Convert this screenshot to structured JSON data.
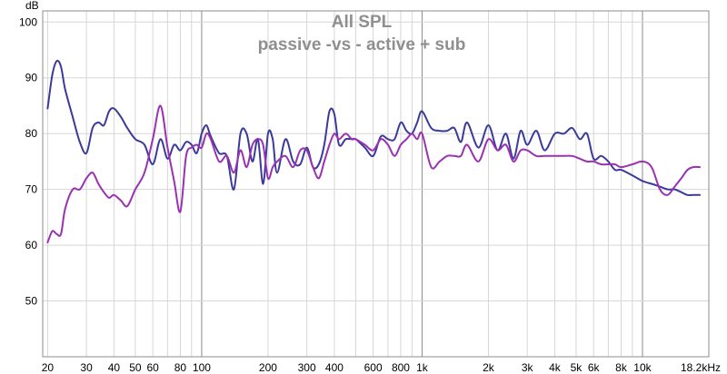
{
  "chart_data": {
    "type": "line",
    "title": "All SPL",
    "subtitle": "passive -vs - active + sub",
    "ylabel": "dB",
    "xlabel": "",
    "x_scale": "log",
    "xlim": [
      19,
      20000
    ],
    "ylim": [
      40,
      102
    ],
    "grid": true,
    "colors": {
      "blue": "#3a3a9a",
      "purple": "#9a30b2",
      "grid_major": "#8c8c8c",
      "grid_minor": "#d6d6d6"
    },
    "y_ticks": [
      {
        "v": 100,
        "label": "100"
      },
      {
        "v": 90,
        "label": "90"
      },
      {
        "v": 80,
        "label": "80"
      },
      {
        "v": 70,
        "label": "70"
      },
      {
        "v": 60,
        "label": "60"
      },
      {
        "v": 50,
        "label": "50"
      }
    ],
    "x_ticks": [
      {
        "v": 20,
        "label": "20"
      },
      {
        "v": 30,
        "label": "30"
      },
      {
        "v": 40,
        "label": "40"
      },
      {
        "v": 50,
        "label": "50"
      },
      {
        "v": 60,
        "label": "60"
      },
      {
        "v": 80,
        "label": "80"
      },
      {
        "v": 100,
        "label": "100"
      },
      {
        "v": 200,
        "label": "200"
      },
      {
        "v": 300,
        "label": "300"
      },
      {
        "v": 400,
        "label": "400"
      },
      {
        "v": 600,
        "label": "600"
      },
      {
        "v": 800,
        "label": "800"
      },
      {
        "v": 1000,
        "label": "1k"
      },
      {
        "v": 2000,
        "label": "2k"
      },
      {
        "v": 3000,
        "label": "3k"
      },
      {
        "v": 4000,
        "label": "4k"
      },
      {
        "v": 5000,
        "label": "5k"
      },
      {
        "v": 6000,
        "label": "6k"
      },
      {
        "v": 8000,
        "label": "8k"
      },
      {
        "v": 10000,
        "label": "10k"
      },
      {
        "v": 18200,
        "label": "18.2kHz"
      }
    ],
    "series": [
      {
        "color": "#3a3a9a",
        "x": [
          20,
          21,
          22,
          23,
          24,
          26,
          28,
          30,
          32,
          34,
          36,
          38,
          40,
          43,
          46,
          50,
          55,
          60,
          65,
          70,
          75,
          80,
          85,
          90,
          95,
          100,
          105,
          110,
          120,
          130,
          140,
          150,
          160,
          170,
          180,
          190,
          200,
          210,
          220,
          240,
          260,
          280,
          300,
          320,
          340,
          360,
          380,
          400,
          420,
          450,
          480,
          500,
          550,
          600,
          650,
          700,
          750,
          800,
          850,
          900,
          950,
          1000,
          1100,
          1200,
          1300,
          1400,
          1500,
          1600,
          1800,
          2000,
          2200,
          2400,
          2600,
          2800,
          3000,
          3300,
          3600,
          4000,
          4400,
          4800,
          5200,
          5600,
          6000,
          6500,
          7000,
          7500,
          8000,
          9000,
          10000,
          11000,
          12000,
          13000,
          14000,
          15000,
          16000,
          17000,
          18200
        ],
        "y": [
          84.5,
          90.5,
          93,
          92,
          88,
          83,
          78.5,
          76.5,
          81,
          82,
          81.5,
          84,
          84.5,
          83,
          81,
          79,
          78,
          74.5,
          79,
          75.5,
          78,
          77,
          78.5,
          78,
          76.5,
          80,
          81.5,
          79.5,
          76.5,
          76,
          70,
          80,
          80,
          75,
          79,
          71,
          80,
          79,
          73,
          79,
          75,
          74.5,
          77.5,
          74,
          74.5,
          78,
          84,
          83.5,
          78,
          79,
          79,
          79,
          77.5,
          76,
          79.5,
          79,
          79,
          82,
          80.5,
          80,
          82,
          84,
          81,
          80.5,
          80.5,
          81,
          78.5,
          82,
          77.5,
          81.5,
          77,
          80,
          75.5,
          80.5,
          78,
          80.5,
          77,
          80,
          80,
          81,
          79,
          80,
          75.5,
          76,
          75,
          73.5,
          73.5,
          72.5,
          71.5,
          71,
          70.5,
          70,
          70,
          69.5,
          69,
          69,
          69
        ]
      },
      {
        "color": "#9a30b2",
        "x": [
          20,
          21,
          22,
          23,
          24,
          26,
          28,
          30,
          32,
          34,
          36,
          38,
          40,
          43,
          46,
          50,
          55,
          60,
          65,
          70,
          75,
          80,
          85,
          90,
          95,
          100,
          105,
          110,
          120,
          130,
          140,
          150,
          160,
          170,
          180,
          190,
          200,
          210,
          220,
          240,
          260,
          280,
          300,
          320,
          340,
          360,
          380,
          400,
          420,
          450,
          480,
          500,
          550,
          600,
          650,
          700,
          750,
          800,
          850,
          900,
          950,
          1000,
          1100,
          1200,
          1300,
          1400,
          1500,
          1600,
          1800,
          2000,
          2200,
          2400,
          2600,
          2800,
          3000,
          3300,
          3600,
          4000,
          4400,
          4800,
          5200,
          5600,
          6000,
          6500,
          7000,
          7500,
          8000,
          9000,
          10000,
          11000,
          12000,
          13000,
          14000,
          15000,
          16000,
          17000,
          18200
        ],
        "y": [
          60.5,
          62.5,
          62,
          62,
          66.5,
          70,
          70,
          72,
          73,
          71,
          69.5,
          68.5,
          69,
          68,
          67,
          70,
          73,
          79,
          85,
          77.5,
          71.5,
          66,
          76,
          77.5,
          78,
          77.5,
          80,
          79,
          75,
          76,
          73,
          77,
          74,
          78,
          79,
          78,
          72,
          74,
          75,
          76,
          74,
          77,
          77,
          74,
          72,
          75,
          78,
          80,
          79,
          80,
          79,
          79,
          78,
          77,
          79,
          78,
          76,
          78,
          79,
          80,
          79,
          80,
          74,
          75,
          76,
          76,
          76,
          78,
          75,
          79,
          77,
          78,
          75,
          77,
          77,
          76,
          76,
          76,
          76,
          76,
          75.5,
          75,
          75,
          74.5,
          74.5,
          74.5,
          74,
          74.5,
          75,
          74,
          70,
          69,
          70.5,
          72,
          73.5,
          74,
          74
        ]
      }
    ]
  }
}
